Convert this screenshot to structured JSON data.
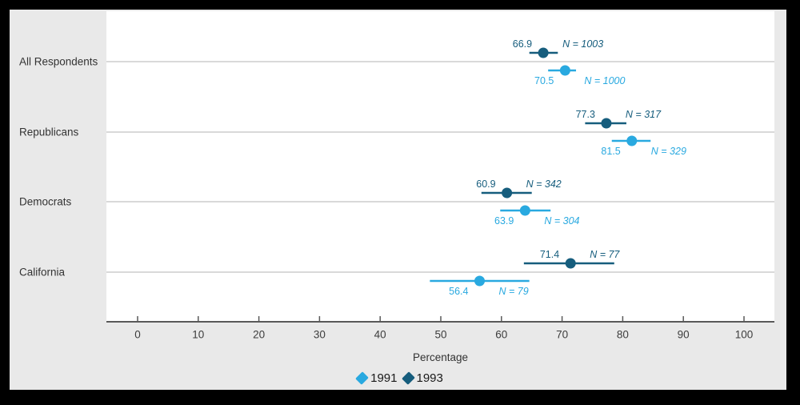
{
  "chart_data": {
    "type": "scatter",
    "subtype": "dot-plot-with-confidence-intervals",
    "title": "",
    "xlabel": "Percentage",
    "ylabel": "",
    "xlim": [
      -5,
      105
    ],
    "x_ticks": [
      0,
      10,
      20,
      30,
      40,
      50,
      60,
      70,
      80,
      90,
      100
    ],
    "grid": "horizontal-category-lines",
    "legend_position": "bottom-center",
    "categories": [
      "All Respondents",
      "Republicans",
      "Democrats",
      "California"
    ],
    "series": [
      {
        "name": "1991",
        "color": "#29a9e0",
        "placement": "below_gridline",
        "points": [
          {
            "category": "All Respondents",
            "value": 70.5,
            "value_label": "70.5",
            "n_label": "N = 1000",
            "ci": [
              67.7,
              72.3
            ]
          },
          {
            "category": "Republicans",
            "value": 81.5,
            "value_label": "81.5",
            "n_label": "N = 329",
            "ci": [
              78.2,
              84.6
            ]
          },
          {
            "category": "Democrats",
            "value": 63.9,
            "value_label": "63.9",
            "n_label": "N = 304",
            "ci": [
              59.8,
              68.1
            ]
          },
          {
            "category": "California",
            "value": 56.4,
            "value_label": "56.4",
            "n_label": "N = 79",
            "ci": [
              48.2,
              64.6
            ]
          }
        ]
      },
      {
        "name": "1993",
        "color": "#165d7d",
        "placement": "above_gridline",
        "points": [
          {
            "category": "All Respondents",
            "value": 66.9,
            "value_label": "66.9",
            "n_label": "N = 1003",
            "ci": [
              64.6,
              69.3
            ]
          },
          {
            "category": "Republicans",
            "value": 77.3,
            "value_label": "77.3",
            "n_label": "N = 317",
            "ci": [
              73.8,
              80.6
            ]
          },
          {
            "category": "Democrats",
            "value": 60.9,
            "value_label": "60.9",
            "n_label": "N = 342",
            "ci": [
              56.7,
              65.0
            ]
          },
          {
            "category": "California",
            "value": 71.4,
            "value_label": "71.4",
            "n_label": "N = 77",
            "ci": [
              63.7,
              78.6
            ]
          }
        ]
      }
    ],
    "colors": {
      "frame": "#000000",
      "margin_background": "#e9e9e9",
      "plot_background": "#ffffff",
      "gridline": "#d9d9d9",
      "axis": "#595959",
      "tick_label": "#3d3d3d",
      "category_label": "#333333"
    }
  }
}
